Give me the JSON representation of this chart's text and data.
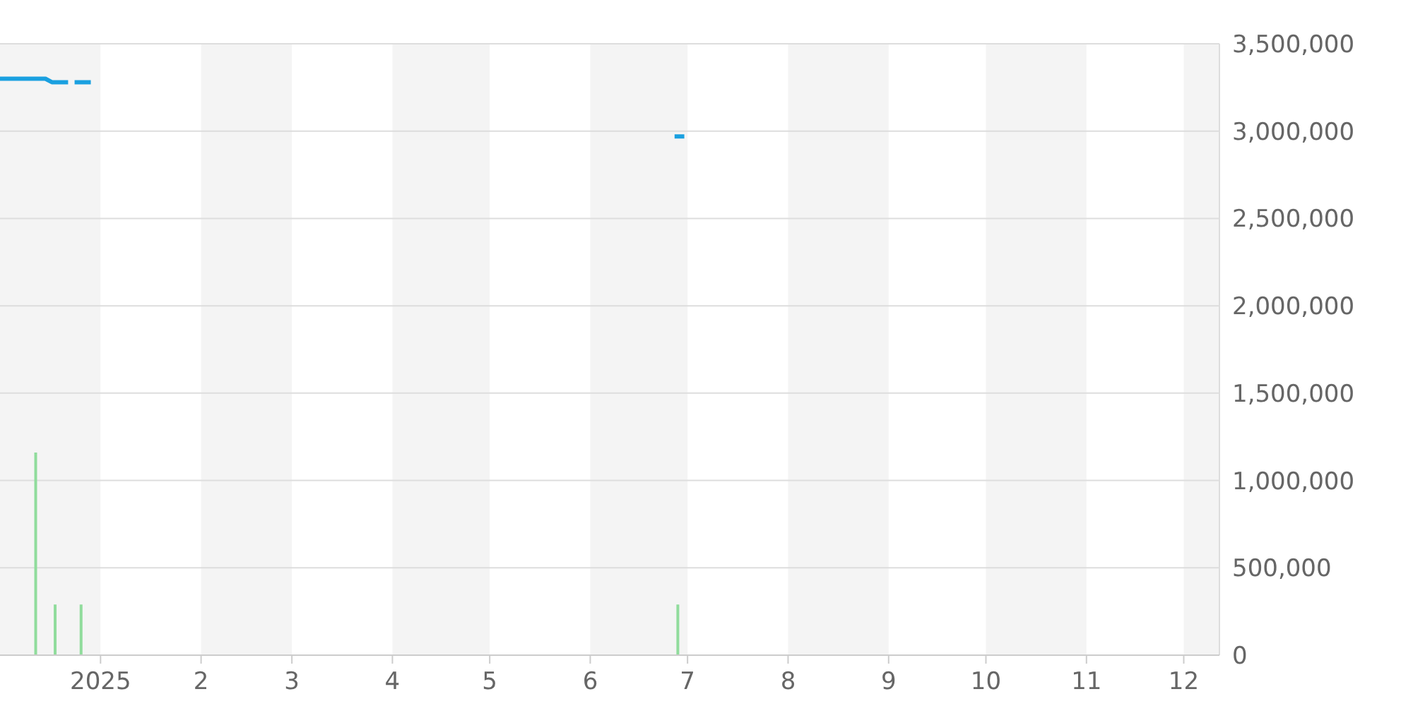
{
  "chart_data": {
    "type": "line",
    "xlim": [
      "2024-12-01",
      "2025-12-12"
    ],
    "xticks": [
      {
        "value": "2025-01-01",
        "label": "2025"
      },
      {
        "value": "2025-02-01",
        "label": "2"
      },
      {
        "value": "2025-03-01",
        "label": "3"
      },
      {
        "value": "2025-04-01",
        "label": "4"
      },
      {
        "value": "2025-05-01",
        "label": "5"
      },
      {
        "value": "2025-06-01",
        "label": "6"
      },
      {
        "value": "2025-07-01",
        "label": "7"
      },
      {
        "value": "2025-08-01",
        "label": "8"
      },
      {
        "value": "2025-09-01",
        "label": "9"
      },
      {
        "value": "2025-10-01",
        "label": "10"
      },
      {
        "value": "2025-11-01",
        "label": "11"
      },
      {
        "value": "2025-12-01",
        "label": "12"
      }
    ],
    "ylim": [
      0,
      3500000
    ],
    "yticks": [
      {
        "value": 0,
        "label": "0"
      },
      {
        "value": 500000,
        "label": "500,000"
      },
      {
        "value": 1000000,
        "label": "1,000,000"
      },
      {
        "value": 1500000,
        "label": "1,500,000"
      },
      {
        "value": 2000000,
        "label": "2,000,000"
      },
      {
        "value": 2500000,
        "label": "2,500,000"
      },
      {
        "value": 3000000,
        "label": "3,000,000"
      },
      {
        "value": 3500000,
        "label": "3,500,000"
      }
    ],
    "grid": "y",
    "bands": [
      {
        "axis": "x",
        "from": "2024-12-01",
        "to": "2025-01-01",
        "color": "#f4f4f4"
      },
      {
        "axis": "x",
        "from": "2025-02-01",
        "to": "2025-03-01",
        "color": "#f4f4f4"
      },
      {
        "axis": "x",
        "from": "2025-04-01",
        "to": "2025-05-01",
        "color": "#f4f4f4"
      },
      {
        "axis": "x",
        "from": "2025-06-01",
        "to": "2025-07-01",
        "color": "#f4f4f4"
      },
      {
        "axis": "x",
        "from": "2025-08-01",
        "to": "2025-09-01",
        "color": "#f4f4f4"
      },
      {
        "axis": "x",
        "from": "2025-10-01",
        "to": "2025-11-01",
        "color": "#f4f4f4"
      },
      {
        "axis": "x",
        "from": "2025-12-01",
        "to": "2025-12-12",
        "color": "#f4f4f4"
      }
    ],
    "series": [
      {
        "color": "#1aa0e0",
        "x": [
          "2024-12-01",
          "2024-12-15",
          "2024-12-17",
          "2024-12-22",
          "2024-12-23",
          "2024-12-24",
          "2024-12-29",
          "2025-01-15",
          "2025-06-27",
          "2025-06-30"
        ],
        "values": [
          3300000,
          3300000,
          3280000,
          3280000,
          null,
          3280000,
          3280000,
          null,
          2970000,
          2970000
        ]
      },
      {
        "type": "bar",
        "color": "#90dc9c",
        "x": [
          "2024-12-12",
          "2024-12-18",
          "2024-12-26",
          "2025-06-28"
        ],
        "values": [
          1160000,
          290000,
          290000,
          290000
        ]
      }
    ]
  }
}
